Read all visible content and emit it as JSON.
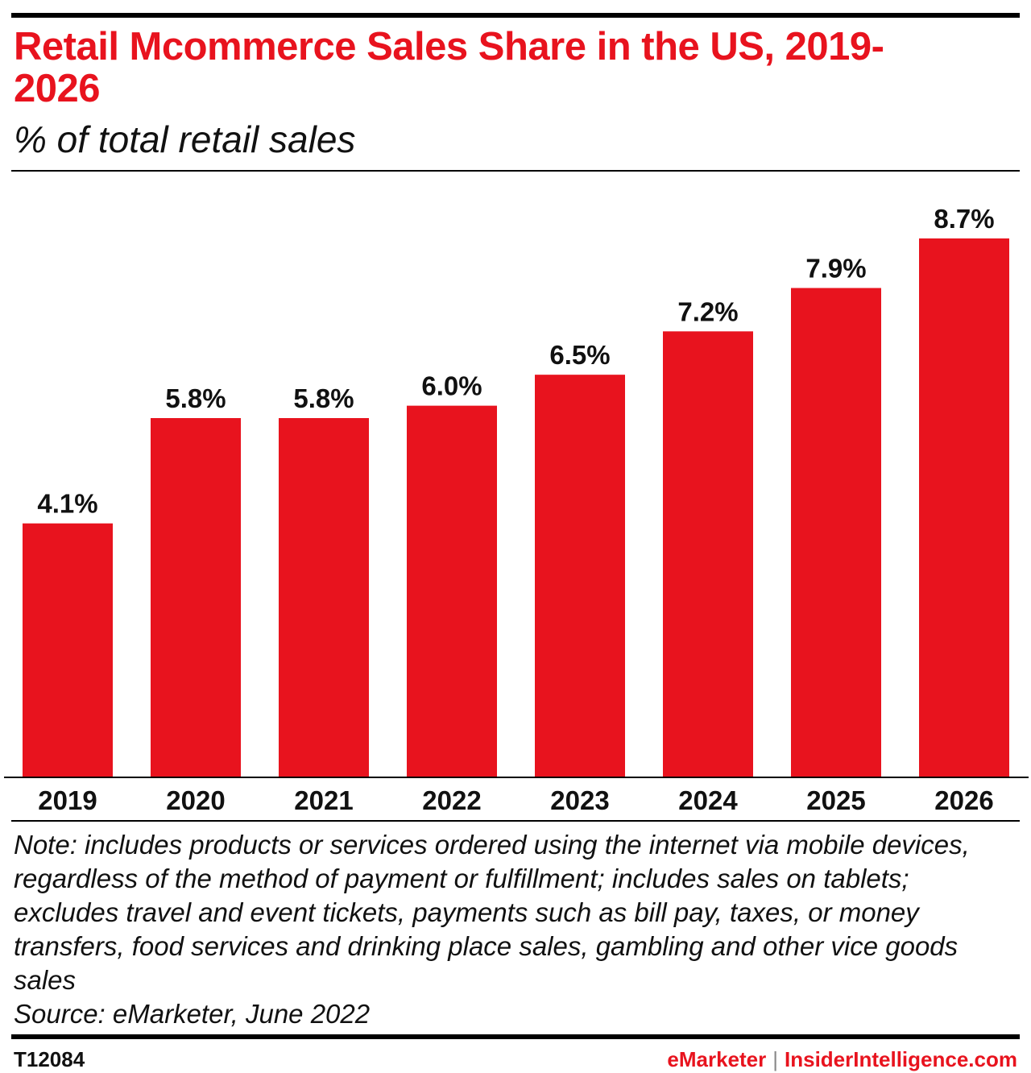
{
  "title": "Retail Mcommerce Sales Share in the US, 2019-2026",
  "subtitle": "% of total retail sales",
  "chart_data": {
    "type": "bar",
    "title": "Retail Mcommerce Sales Share in the US, 2019-2026",
    "subtitle": "% of total retail sales",
    "categories": [
      "2019",
      "2020",
      "2021",
      "2022",
      "2023",
      "2024",
      "2025",
      "2026"
    ],
    "values": [
      4.1,
      5.8,
      5.8,
      6.0,
      6.5,
      7.2,
      7.9,
      8.7
    ],
    "data_labels": [
      "4.1%",
      "5.8%",
      "5.8%",
      "6.0%",
      "6.5%",
      "7.2%",
      "7.9%",
      "8.7%"
    ],
    "xlabel": "",
    "ylabel": "",
    "ylim": [
      0,
      8.7
    ],
    "grid": false,
    "bar_color": "#e8131e"
  },
  "note": "Note: includes products or services ordered using the internet via mobile devices, regardless of the method of payment or fulfillment; includes sales on tablets; excludes travel and event tickets, payments such as bill pay, taxes, or money transfers, food services and drinking place sales, gambling and other vice goods sales",
  "source": "Source: eMarketer, June 2022",
  "footer": {
    "code": "T12084",
    "brand_left": "eMarketer",
    "separator": "|",
    "brand_right": "InsiderIntelligence.com"
  }
}
